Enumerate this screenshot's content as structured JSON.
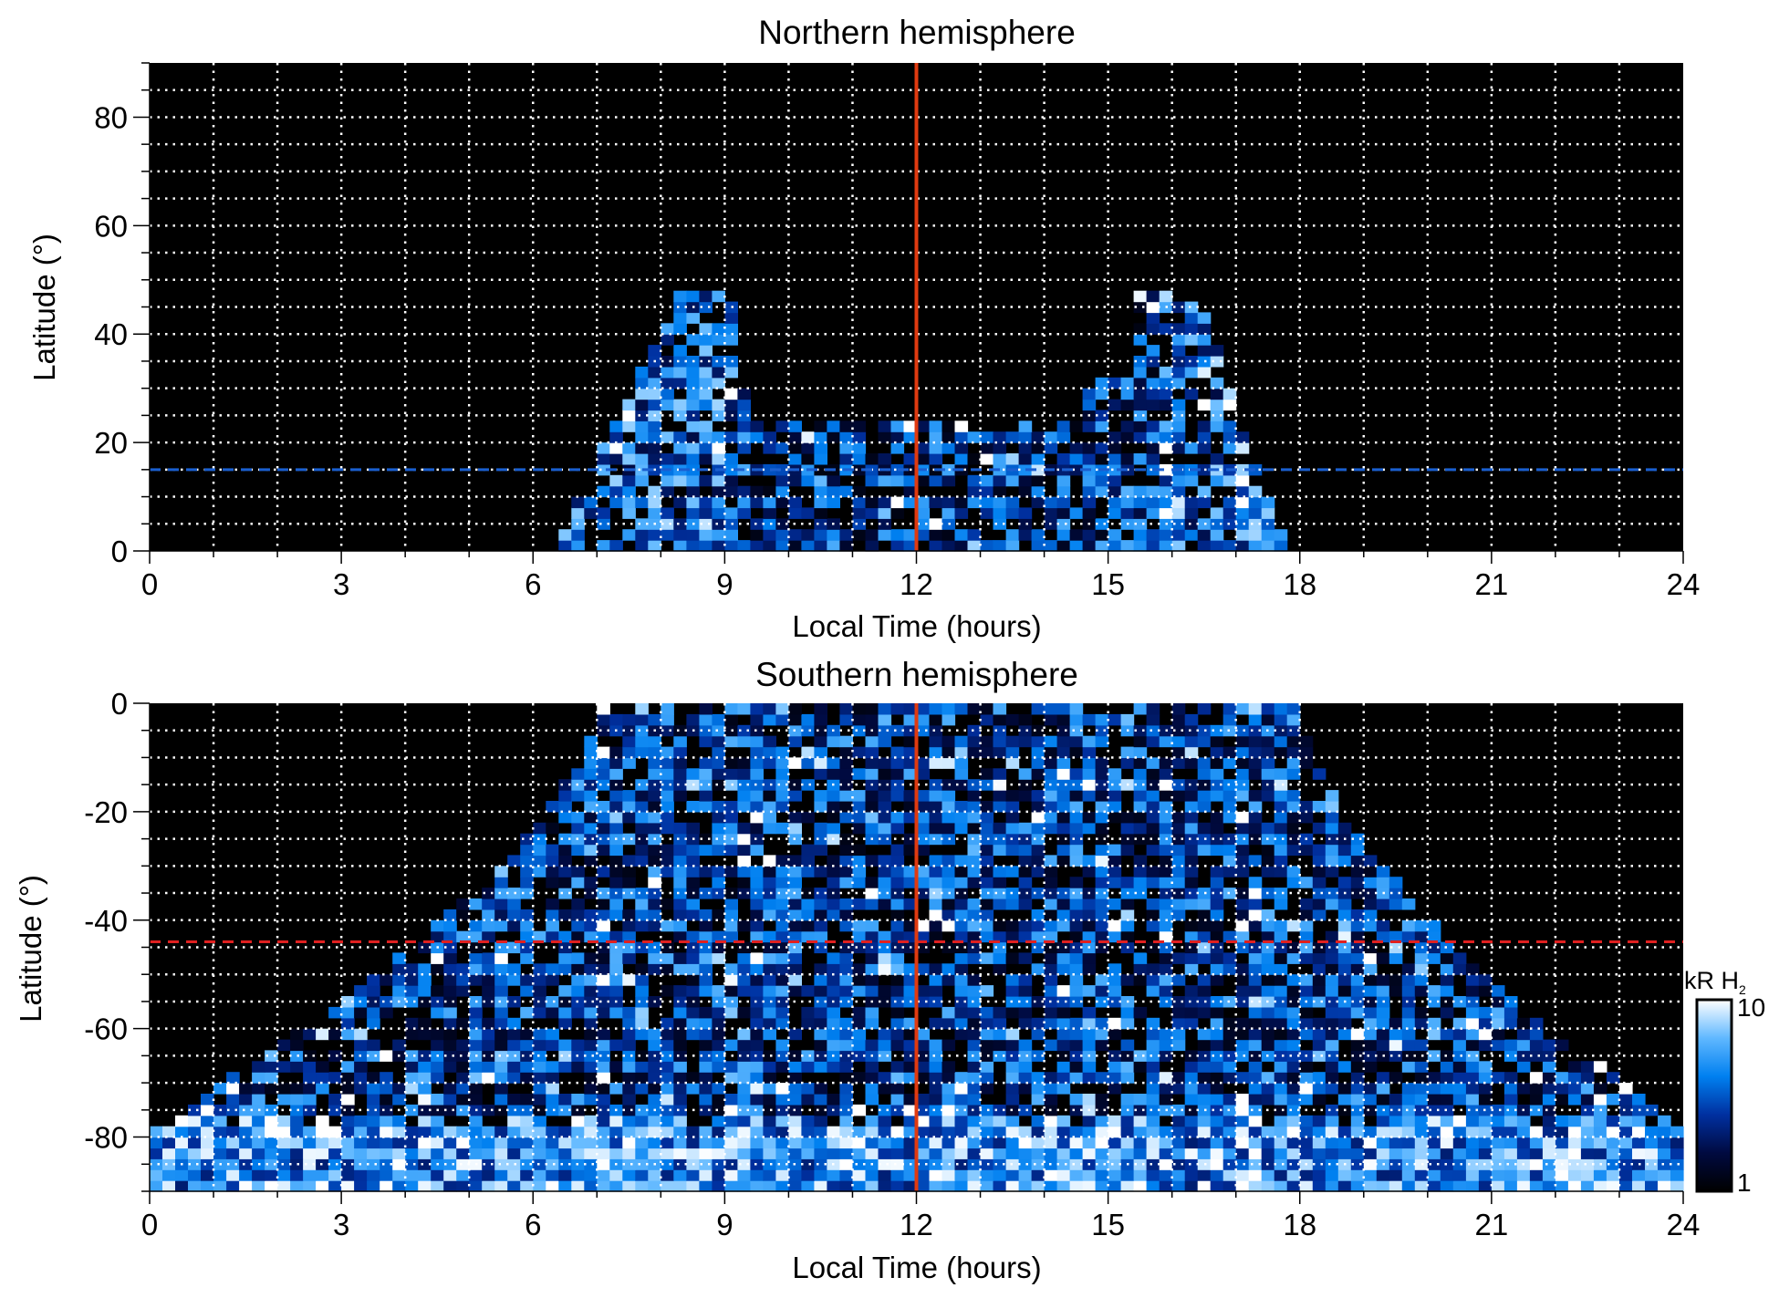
{
  "chart_data": [
    {
      "type": "heatmap",
      "title": "Northern hemisphere",
      "xlabel": "Local Time (hours)",
      "ylabel": "Latitude (°)",
      "xlim": [
        0,
        24
      ],
      "ylim": [
        0,
        90
      ],
      "xticks": [
        "0",
        "3",
        "6",
        "9",
        "12",
        "15",
        "18",
        "21",
        "24"
      ],
      "yticks": [
        "0",
        "20",
        "40",
        "60",
        "80"
      ],
      "ytick_values": [
        0,
        20,
        40,
        60,
        80
      ],
      "grid": true,
      "vline_x": 12,
      "vline_color": "#e03a10",
      "hline_y": 15,
      "hline_color": "#1a5fd0",
      "emission_envelope": {
        "lt_min_at_equator": 6.3,
        "lt_max_at_equator": 17.8,
        "max_lat": 48
      }
    },
    {
      "type": "heatmap",
      "title": "Southern hemisphere",
      "xlabel": "Local Time (hours)",
      "ylabel": "Latitude (°)",
      "xlim": [
        0,
        24
      ],
      "ylim": [
        -90,
        0
      ],
      "xticks": [
        "0",
        "3",
        "6",
        "9",
        "12",
        "15",
        "18",
        "21",
        "24"
      ],
      "yticks": [
        "0",
        "-20",
        "-40",
        "-60",
        "-80"
      ],
      "ytick_values": [
        0,
        -20,
        -40,
        -60,
        -80
      ],
      "grid": true,
      "vline_x": 12,
      "vline_color": "#e03a10",
      "hline_y": -44,
      "hline_color": "#e02020",
      "emission_envelope": {
        "lt_min_at_equator": 7,
        "lt_max_at_equator": 18,
        "full_coverage_below_lat": -75
      }
    }
  ],
  "colorbar": {
    "label": "kR H",
    "label_sub": "2",
    "min_label": "1",
    "max_label": "10",
    "scale": "log",
    "range": [
      1,
      10
    ],
    "colors": [
      "#000000",
      "#000a40",
      "#0030a0",
      "#0080f0",
      "#60b8ff",
      "#ffffff"
    ]
  }
}
